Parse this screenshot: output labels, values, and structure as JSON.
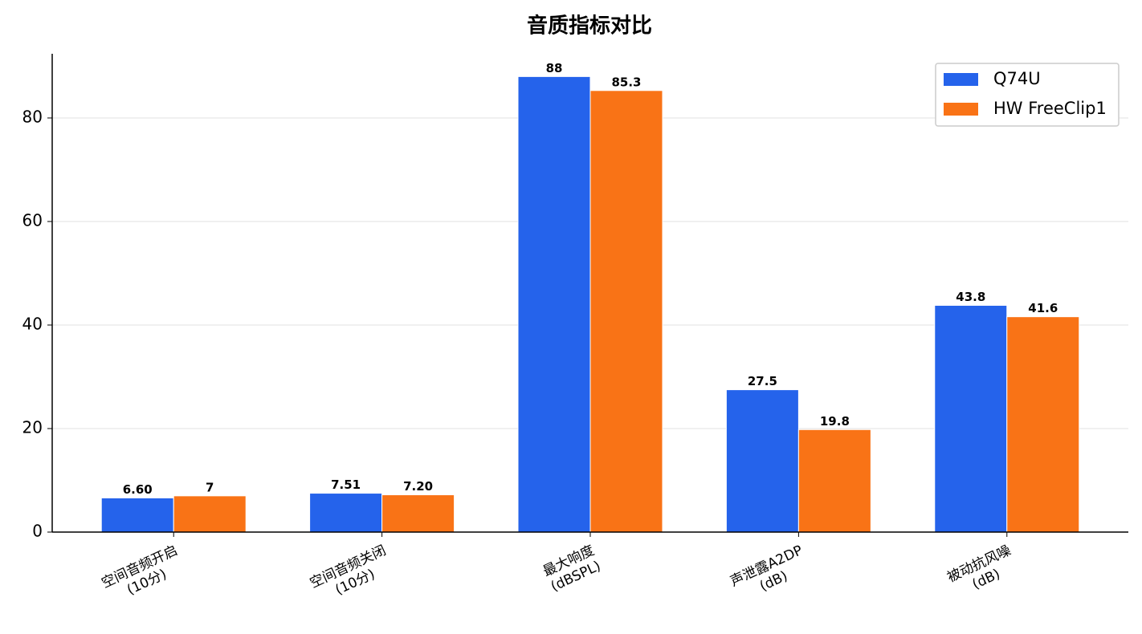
{
  "chart_data": {
    "type": "bar",
    "title": "音质指标对比",
    "categories": [
      [
        "空间音频开启",
        "(10分)"
      ],
      [
        "空间音频关闭",
        "(10分)"
      ],
      [
        "最大响度",
        "(dBSPL)"
      ],
      [
        "声泄露A2DP",
        "(dB)"
      ],
      [
        "被动抗风噪",
        "(dB)"
      ]
    ],
    "series": [
      {
        "name": "Q74U",
        "color": "#2563eb",
        "values": [
          6.6,
          7.51,
          88,
          27.5,
          43.8
        ],
        "value_labels": [
          "6.60",
          "7.51",
          "88",
          "27.5",
          "43.8"
        ]
      },
      {
        "name": "HW FreeClip1",
        "color": "#f97316",
        "values": [
          7,
          7.2,
          85.3,
          19.8,
          41.6
        ],
        "value_labels": [
          "7",
          "7.20",
          "85.3",
          "19.8",
          "41.6"
        ]
      }
    ],
    "ylim": [
      0,
      92.4
    ],
    "yticks": [
      0,
      20,
      40,
      60,
      80
    ],
    "grid": true,
    "legend": "upper right"
  }
}
